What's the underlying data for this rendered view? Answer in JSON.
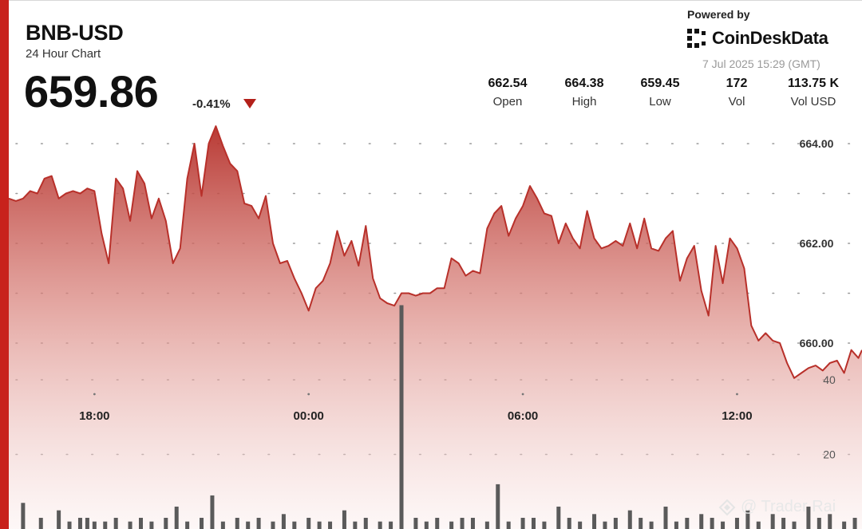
{
  "header": {
    "title": "BNB-USD",
    "subtitle": "24 Hour Chart",
    "price": "659.86",
    "change": "-0.41%"
  },
  "branding": {
    "powered_by": "Powered by",
    "name": "CoinDeskData",
    "timestamp": "7 Jul 2025 15:29 (GMT)"
  },
  "stats": [
    {
      "value": "662.54",
      "label": "Open"
    },
    {
      "value": "664.38",
      "label": "High"
    },
    {
      "value": "659.45",
      "label": "Low"
    },
    {
      "value": "172",
      "label": "Vol"
    },
    {
      "value": "113.75 K",
      "label": "Vol USD"
    }
  ],
  "watermark": "@ Trader Rai",
  "colors": {
    "accent": "#c8221c",
    "line": "#b8302a",
    "down": "#b3201a"
  },
  "chart_data": {
    "type": "area",
    "x_tick_labels": [
      "18:00",
      "00:00",
      "06:00",
      "12:00"
    ],
    "x_tick_hours": [
      18,
      24,
      30,
      36
    ],
    "x_range_hours": [
      15.6,
      39.5
    ],
    "price_ticks": [
      "664.00",
      "662.00",
      "660.00"
    ],
    "price_tick_values": [
      664,
      662,
      660
    ],
    "ylim": [
      658.0,
      664.4
    ],
    "volume_ticks": [
      "40",
      "20"
    ],
    "volume_tick_values": [
      40,
      20
    ],
    "volume_ylim": [
      0,
      72
    ],
    "price_series": {
      "name": "",
      "x": [
        15.6,
        15.8,
        16.0,
        16.2,
        16.4,
        16.6,
        16.8,
        17.0,
        17.2,
        17.4,
        17.6,
        17.8,
        18.0,
        18.2,
        18.4,
        18.6,
        18.8,
        19.0,
        19.2,
        19.4,
        19.6,
        19.8,
        20.0,
        20.2,
        20.4,
        20.6,
        20.8,
        21.0,
        21.2,
        21.4,
        21.6,
        21.8,
        22.0,
        22.2,
        22.4,
        22.6,
        22.8,
        23.0,
        23.2,
        23.4,
        23.6,
        23.8,
        24.0,
        24.2,
        24.4,
        24.6,
        24.8,
        25.0,
        25.2,
        25.4,
        25.6,
        25.8,
        26.0,
        26.2,
        26.4,
        26.6,
        26.8,
        27.0,
        27.2,
        27.4,
        27.6,
        27.8,
        28.0,
        28.2,
        28.4,
        28.6,
        28.8,
        29.0,
        29.2,
        29.4,
        29.6,
        29.8,
        30.0,
        30.2,
        30.4,
        30.6,
        30.8,
        31.0,
        31.2,
        31.4,
        31.6,
        31.8,
        32.0,
        32.2,
        32.4,
        32.6,
        32.8,
        33.0,
        33.2,
        33.4,
        33.6,
        33.8,
        34.0,
        34.2,
        34.4,
        34.6,
        34.8,
        35.0,
        35.2,
        35.4,
        35.6,
        35.8,
        36.0,
        36.2,
        36.4,
        36.6,
        36.8,
        37.0,
        37.2,
        37.4,
        37.6,
        37.8,
        38.0,
        38.2,
        38.4,
        38.6,
        38.8,
        39.0,
        39.2,
        39.4,
        39.5
      ],
      "y": [
        662.9,
        662.85,
        662.9,
        663.05,
        663.0,
        663.3,
        663.35,
        662.9,
        663.0,
        663.05,
        663.0,
        663.1,
        663.05,
        662.2,
        661.6,
        663.3,
        663.1,
        662.45,
        663.45,
        663.2,
        662.5,
        662.9,
        662.45,
        661.6,
        661.9,
        663.3,
        664.0,
        662.95,
        664.0,
        664.35,
        663.95,
        663.6,
        663.45,
        662.8,
        662.75,
        662.5,
        662.95,
        662.0,
        661.6,
        661.65,
        661.3,
        661.0,
        660.65,
        661.1,
        661.25,
        661.6,
        662.25,
        661.75,
        662.05,
        661.55,
        662.35,
        661.3,
        660.9,
        660.8,
        660.75,
        661.0,
        661.0,
        660.95,
        661.0,
        661.0,
        661.1,
        661.1,
        661.7,
        661.6,
        661.35,
        661.45,
        661.4,
        662.3,
        662.6,
        662.75,
        662.15,
        662.5,
        662.75,
        663.15,
        662.9,
        662.6,
        662.55,
        662.0,
        662.4,
        662.1,
        661.9,
        662.65,
        662.1,
        661.9,
        661.95,
        662.05,
        661.95,
        662.4,
        661.9,
        662.5,
        661.9,
        661.85,
        662.1,
        662.25,
        661.25,
        661.7,
        661.95,
        661.05,
        660.55,
        661.95,
        661.2,
        662.1,
        661.9,
        661.5,
        660.35,
        660.05,
        660.2,
        660.05,
        660.0,
        659.6,
        659.3,
        659.4,
        659.5,
        659.55,
        659.45,
        659.6,
        659.65,
        659.4,
        659.86,
        659.7,
        659.86
      ],
      "y_note": "",
      "x_hours_note": ""
    },
    "volume_series": {
      "name": "",
      "x": [
        16.0,
        16.5,
        17.0,
        17.3,
        17.6,
        17.8,
        18.0,
        18.3,
        18.6,
        19.0,
        19.3,
        19.6,
        20.0,
        20.3,
        20.6,
        21.0,
        21.3,
        21.6,
        22.0,
        22.3,
        22.6,
        23.0,
        23.3,
        23.6,
        24.0,
        24.3,
        24.6,
        25.0,
        25.3,
        25.6,
        26.0,
        26.3,
        26.6,
        27.0,
        27.3,
        27.6,
        28.0,
        28.3,
        28.6,
        29.0,
        29.3,
        29.6,
        30.0,
        30.3,
        30.6,
        31.0,
        31.3,
        31.6,
        32.0,
        32.3,
        32.6,
        33.0,
        33.3,
        33.6,
        34.0,
        34.3,
        34.6,
        35.0,
        35.3,
        35.6,
        36.0,
        36.3,
        36.6,
        37.0,
        37.3,
        37.6,
        38.0,
        38.3,
        38.6,
        39.0,
        39.3
      ],
      "y": [
        7,
        3,
        5,
        2,
        3,
        3,
        2,
        2,
        3,
        2,
        3,
        2,
        3,
        6,
        2,
        3,
        9,
        2,
        3,
        2,
        3,
        2,
        4,
        2,
        3,
        2,
        2,
        5,
        2,
        3,
        2,
        2,
        60,
        3,
        2,
        3,
        2,
        3,
        3,
        2,
        12,
        2,
        3,
        3,
        2,
        6,
        3,
        2,
        4,
        2,
        3,
        5,
        3,
        2,
        6,
        2,
        3,
        4,
        3,
        2,
        3,
        5,
        2,
        4,
        3,
        2,
        6,
        3,
        4,
        2,
        3
      ]
    }
  }
}
